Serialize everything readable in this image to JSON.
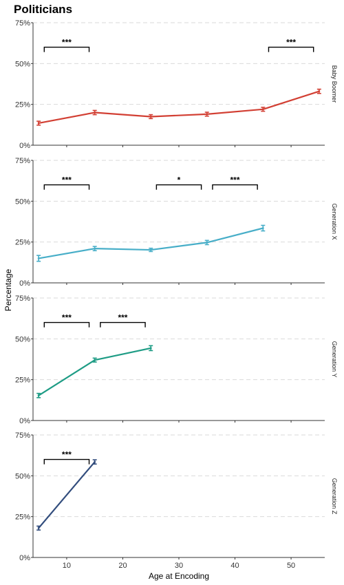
{
  "chart_data": {
    "type": "line",
    "title": "Politicians",
    "xlabel": "Age at Encoding",
    "ylabel": "Percentage",
    "xlim": [
      4,
      56
    ],
    "ylim": [
      0,
      75
    ],
    "x_ticks": [
      10,
      20,
      30,
      40,
      50
    ],
    "y_ticks": [
      0,
      25,
      50,
      75
    ],
    "y_tick_labels": [
      "0%",
      "25%",
      "50%",
      "75%"
    ],
    "grid": "horizontal dashed",
    "panels": [
      {
        "name": "Baby Boomer",
        "color": "#d23f33",
        "x": [
          5,
          15,
          25,
          35,
          45,
          55
        ],
        "y": [
          13.5,
          20,
          17.5,
          19,
          22,
          33
        ],
        "err": [
          1.2,
          1.3,
          1.2,
          1.2,
          1.2,
          1.3
        ],
        "brackets": [
          {
            "x1": 6,
            "x2": 14,
            "y": 60,
            "label": "***"
          },
          {
            "x1": 46,
            "x2": 54,
            "y": 60,
            "label": "***"
          }
        ]
      },
      {
        "name": "Generation X",
        "color": "#47aec8",
        "x": [
          5,
          15,
          25,
          35,
          45
        ],
        "y": [
          15,
          21,
          20.2,
          24.7,
          33.5
        ],
        "err": [
          1.8,
          1.3,
          1.0,
          1.3,
          1.7
        ],
        "brackets": [
          {
            "x1": 6,
            "x2": 14,
            "y": 60,
            "label": "***"
          },
          {
            "x1": 26,
            "x2": 34,
            "y": 60,
            "label": "*"
          },
          {
            "x1": 36,
            "x2": 44,
            "y": 60,
            "label": "***"
          }
        ]
      },
      {
        "name": "Generation Y",
        "color": "#1e9c85",
        "x": [
          5,
          15,
          25
        ],
        "y": [
          15.3,
          37,
          44.3
        ],
        "err": [
          1.3,
          1.2,
          1.5
        ],
        "brackets": [
          {
            "x1": 6,
            "x2": 14,
            "y": 60,
            "label": "***"
          },
          {
            "x1": 16,
            "x2": 24,
            "y": 60,
            "label": "***"
          }
        ]
      },
      {
        "name": "Generation Z",
        "color": "#324d7d",
        "x": [
          5,
          15
        ],
        "y": [
          18,
          58.5
        ],
        "err": [
          1.2,
          1.3
        ],
        "brackets": [
          {
            "x1": 6,
            "x2": 14,
            "y": 60,
            "label": "***"
          }
        ]
      }
    ]
  }
}
